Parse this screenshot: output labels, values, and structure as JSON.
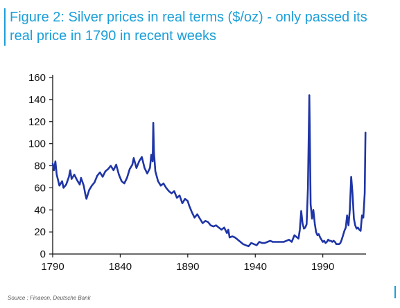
{
  "header": {
    "title_line1": "Figure 2: Silver prices in real terms ($/oz) - only passed its",
    "title_line2": "real price in 1790 in recent weeks"
  },
  "footer": {
    "source": "Source : Finaeon, Deutsche Bank"
  },
  "colors": {
    "title": "#1b9fd9",
    "series": "#1f35a6",
    "axis": "#111111"
  },
  "chart_data": {
    "type": "line",
    "title": "Figure 2: Silver prices in real terms ($/oz) - only passed its real price in 1790 in recent weeks",
    "xlabel": "",
    "ylabel": "",
    "xlim": [
      1790,
      2022
    ],
    "ylim": [
      0,
      160
    ],
    "x_ticks": [
      1790,
      1840,
      1890,
      1940,
      1990
    ],
    "y_ticks": [
      0,
      20,
      40,
      60,
      80,
      100,
      120,
      140,
      160
    ],
    "grid": false,
    "legend": "none",
    "series": [
      {
        "values": [
          [
            1790,
            82
          ],
          [
            1791,
            76
          ],
          [
            1792,
            84
          ],
          [
            1793,
            72
          ],
          [
            1795,
            62
          ],
          [
            1797,
            66
          ],
          [
            1798,
            60
          ],
          [
            1800,
            63
          ],
          [
            1802,
            70
          ],
          [
            1803,
            76
          ],
          [
            1804,
            68
          ],
          [
            1806,
            72
          ],
          [
            1808,
            67
          ],
          [
            1810,
            63
          ],
          [
            1811,
            69
          ],
          [
            1813,
            62
          ],
          [
            1814,
            55
          ],
          [
            1815,
            50
          ],
          [
            1817,
            58
          ],
          [
            1819,
            62
          ],
          [
            1821,
            65
          ],
          [
            1823,
            71
          ],
          [
            1825,
            74
          ],
          [
            1827,
            70
          ],
          [
            1829,
            75
          ],
          [
            1831,
            77
          ],
          [
            1833,
            80
          ],
          [
            1835,
            76
          ],
          [
            1837,
            81
          ],
          [
            1839,
            72
          ],
          [
            1841,
            66
          ],
          [
            1843,
            64
          ],
          [
            1845,
            69
          ],
          [
            1847,
            77
          ],
          [
            1849,
            81
          ],
          [
            1850,
            87
          ],
          [
            1852,
            78
          ],
          [
            1854,
            84
          ],
          [
            1856,
            88
          ],
          [
            1858,
            78
          ],
          [
            1860,
            73
          ],
          [
            1862,
            78
          ],
          [
            1863,
            90
          ],
          [
            1864,
            84
          ],
          [
            1864.5,
            119
          ],
          [
            1865,
            92
          ],
          [
            1866,
            75
          ],
          [
            1868,
            66
          ],
          [
            1870,
            62
          ],
          [
            1872,
            64
          ],
          [
            1874,
            60
          ],
          [
            1876,
            57
          ],
          [
            1878,
            55
          ],
          [
            1880,
            57
          ],
          [
            1882,
            51
          ],
          [
            1884,
            53
          ],
          [
            1886,
            46
          ],
          [
            1888,
            50
          ],
          [
            1890,
            48
          ],
          [
            1891,
            44
          ],
          [
            1893,
            38
          ],
          [
            1895,
            33
          ],
          [
            1897,
            36
          ],
          [
            1899,
            32
          ],
          [
            1901,
            28
          ],
          [
            1903,
            30
          ],
          [
            1905,
            29
          ],
          [
            1907,
            26
          ],
          [
            1909,
            25
          ],
          [
            1911,
            26
          ],
          [
            1913,
            24
          ],
          [
            1915,
            22
          ],
          [
            1917,
            24
          ],
          [
            1919,
            19
          ],
          [
            1920,
            22
          ],
          [
            1921,
            15
          ],
          [
            1923,
            16
          ],
          [
            1925,
            15
          ],
          [
            1927,
            13
          ],
          [
            1929,
            11
          ],
          [
            1931,
            9
          ],
          [
            1933,
            8
          ],
          [
            1935,
            7
          ],
          [
            1937,
            10
          ],
          [
            1939,
            9
          ],
          [
            1941,
            8
          ],
          [
            1943,
            11
          ],
          [
            1945,
            10
          ],
          [
            1947,
            10
          ],
          [
            1949,
            11
          ],
          [
            1951,
            12
          ],
          [
            1953,
            11
          ],
          [
            1955,
            11
          ],
          [
            1957,
            11
          ],
          [
            1959,
            11
          ],
          [
            1961,
            11
          ],
          [
            1963,
            12
          ],
          [
            1965,
            13
          ],
          [
            1967,
            11
          ],
          [
            1969,
            17
          ],
          [
            1971,
            15
          ],
          [
            1972,
            14
          ],
          [
            1973,
            22
          ],
          [
            1974,
            39
          ],
          [
            1975,
            28
          ],
          [
            1976,
            23
          ],
          [
            1977,
            24
          ],
          [
            1978,
            27
          ],
          [
            1979,
            60
          ],
          [
            1980,
            144
          ],
          [
            1980.5,
            98
          ],
          [
            1981,
            45
          ],
          [
            1982,
            32
          ],
          [
            1983,
            40
          ],
          [
            1984,
            28
          ],
          [
            1985,
            20
          ],
          [
            1986,
            17
          ],
          [
            1987,
            18
          ],
          [
            1988,
            15
          ],
          [
            1989,
            13
          ],
          [
            1990,
            11
          ],
          [
            1991,
            12
          ],
          [
            1992,
            10
          ],
          [
            1993,
            11
          ],
          [
            1994,
            13
          ],
          [
            1995,
            12
          ],
          [
            1996,
            12
          ],
          [
            1997,
            11
          ],
          [
            1998,
            12
          ],
          [
            1999,
            11
          ],
          [
            2000,
            9
          ],
          [
            2001,
            9
          ],
          [
            2002,
            9
          ],
          [
            2003,
            10
          ],
          [
            2004,
            13
          ],
          [
            2005,
            17
          ],
          [
            2006,
            21
          ],
          [
            2007,
            24
          ],
          [
            2008,
            35
          ],
          [
            2009,
            26
          ],
          [
            2010,
            40
          ],
          [
            2011,
            70
          ],
          [
            2012,
            55
          ],
          [
            2013,
            32
          ],
          [
            2014,
            26
          ],
          [
            2015,
            23
          ],
          [
            2016,
            24
          ],
          [
            2017,
            22
          ],
          [
            2018,
            21
          ],
          [
            2019,
            35
          ],
          [
            2020,
            33
          ],
          [
            2021,
            55
          ],
          [
            2021.6,
            110
          ]
        ]
      }
    ]
  }
}
